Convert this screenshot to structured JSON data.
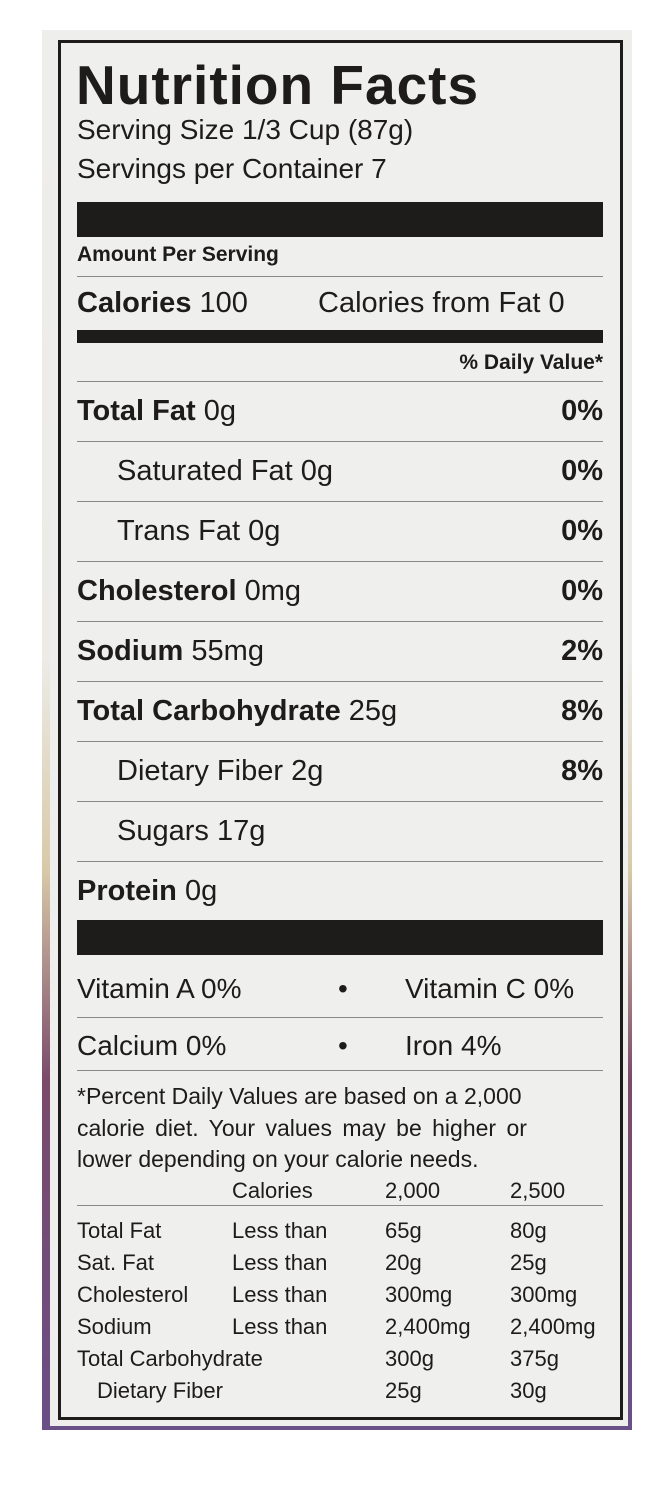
{
  "title": "Nutrition Facts",
  "serving_size": "Serving Size 1/3 Cup (87g)",
  "servings_per_container": "Servings per Container 7",
  "amount_per_serving": "Amount Per Serving",
  "calories": {
    "label": "Calories",
    "value": "100",
    "from_fat": "Calories from Fat 0"
  },
  "daily_value_header": "% Daily Value*",
  "nutrients": [
    {
      "name": "Total Fat",
      "amount": "0g",
      "dv": "0%",
      "bold": true
    },
    {
      "name": "Saturated Fat",
      "amount": "0g",
      "dv": "0%",
      "bold": false
    },
    {
      "name": "Trans Fat",
      "amount": "0g",
      "dv": "0%",
      "bold": false
    },
    {
      "name": "Cholesterol",
      "amount": "0mg",
      "dv": "0%",
      "bold": true
    },
    {
      "name": "Sodium",
      "amount": "55mg",
      "dv": "2%",
      "bold": true
    },
    {
      "name": "Total Carbohydrate",
      "amount": "25g",
      "dv": "8%",
      "bold": true
    },
    {
      "name": "Dietary Fiber",
      "amount": "2g",
      "dv": "8%",
      "bold": false
    },
    {
      "name": "Sugars",
      "amount": "17g",
      "dv": "",
      "bold": false
    },
    {
      "name": "Protein",
      "amount": "0g",
      "dv": "",
      "bold": true
    }
  ],
  "vitamins": [
    {
      "left": "Vitamin A 0%",
      "right": "Vitamin C 0%"
    },
    {
      "left": "Calcium 0%",
      "right": "Iron 4%"
    }
  ],
  "bullet": "•",
  "footnote": [
    "*Percent Daily Values are based on a 2,000",
    "calorie diet. Your values may be higher or",
    "lower depending on your calorie needs."
  ],
  "reference_table": {
    "header": [
      "",
      "Calories",
      "2,000",
      "2,500"
    ],
    "rows": [
      [
        "Total Fat",
        "Less than",
        "65g",
        "80g"
      ],
      [
        "Sat. Fat",
        "Less than",
        "20g",
        "25g"
      ],
      [
        "Cholesterol",
        "Less than",
        "300mg",
        "300mg"
      ],
      [
        "Sodium",
        "Less than",
        "2,400mg",
        "2,400mg"
      ],
      [
        "Total Carbohydrate",
        "",
        "300g",
        "375g"
      ],
      [
        "  Dietary Fiber",
        "",
        "25g",
        "30g"
      ]
    ]
  }
}
